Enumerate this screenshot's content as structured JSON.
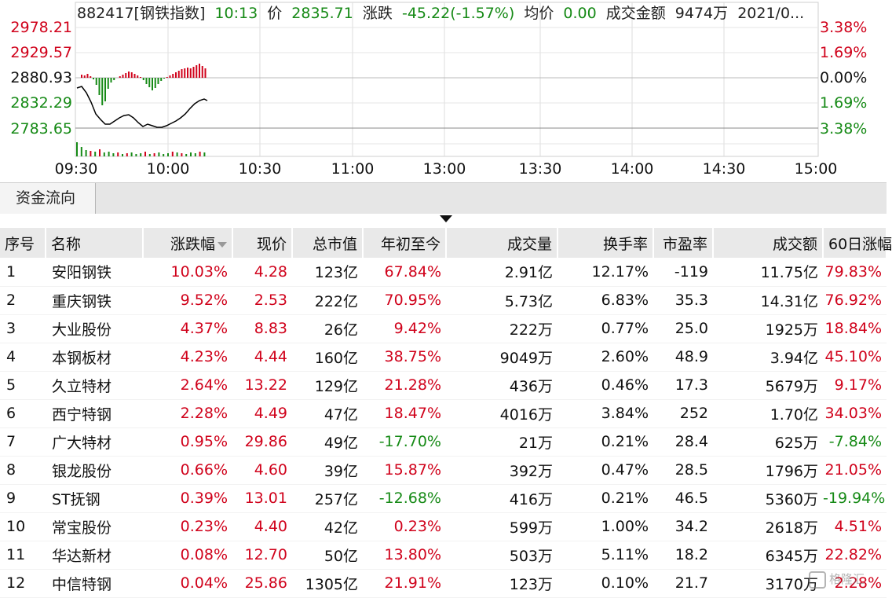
{
  "header": {
    "code_name": "882417[钢铁指数]",
    "time": "10:13",
    "price_label": "价",
    "price": "2835.71",
    "change_label": "涨跌",
    "change": "-45.22(-1.57%)",
    "avg_label": "均价",
    "avg": "0.00",
    "amount_label": "成交金额",
    "amount": "9474万",
    "date": "2021/0..."
  },
  "chart": {
    "left_axis": [
      "2978.21",
      "2929.57",
      "2880.93",
      "2832.29",
      "2783.65"
    ],
    "right_axis": [
      "3.38%",
      "1.69%",
      "0.00%",
      "1.69%",
      "3.38%"
    ],
    "time_axis": [
      "09:30",
      "10:00",
      "10:30",
      "11:00",
      "13:00",
      "13:30",
      "14:00",
      "14:30",
      "15:00"
    ],
    "colors": {
      "up": "#d0021b",
      "down": "#168a16",
      "line": "#000000"
    }
  },
  "tabs": {
    "fund_flow": "资金流向"
  },
  "table": {
    "headers": [
      "序号",
      "名称",
      "涨跌幅",
      "现价",
      "总市值",
      "年初至今",
      "成交量",
      "换手率",
      "市盈率",
      "成交额",
      "60日涨幅"
    ],
    "rows": [
      [
        "1",
        "安阳钢铁",
        "10.03%",
        "4.28",
        "123亿",
        "67.84%",
        "2.91亿",
        "12.17%",
        "-119",
        "11.75亿",
        "79.83%"
      ],
      [
        "2",
        "重庆钢铁",
        "9.52%",
        "2.53",
        "222亿",
        "70.95%",
        "5.73亿",
        "6.83%",
        "35.3",
        "14.31亿",
        "76.92%"
      ],
      [
        "3",
        "大业股份",
        "4.37%",
        "8.83",
        "26亿",
        "9.42%",
        "222万",
        "0.77%",
        "25.0",
        "1925万",
        "18.84%"
      ],
      [
        "4",
        "本钢板材",
        "4.23%",
        "4.44",
        "160亿",
        "38.75%",
        "9049万",
        "2.60%",
        "48.9",
        "3.94亿",
        "45.10%"
      ],
      [
        "5",
        "久立特材",
        "2.64%",
        "13.22",
        "129亿",
        "21.28%",
        "436万",
        "0.46%",
        "17.3",
        "5679万",
        "9.17%"
      ],
      [
        "6",
        "西宁特钢",
        "2.28%",
        "4.49",
        "47亿",
        "18.47%",
        "4016万",
        "3.84%",
        "252",
        "1.70亿",
        "34.03%"
      ],
      [
        "7",
        "广大特材",
        "0.95%",
        "29.86",
        "49亿",
        "-17.70%",
        "21万",
        "0.21%",
        "28.4",
        "625万",
        "-7.84%"
      ],
      [
        "8",
        "银龙股份",
        "0.66%",
        "4.60",
        "39亿",
        "15.87%",
        "392万",
        "0.47%",
        "28.5",
        "1796万",
        "21.05%"
      ],
      [
        "9",
        "ST抚钢",
        "0.39%",
        "13.01",
        "257亿",
        "-12.68%",
        "416万",
        "0.21%",
        "46.5",
        "5360万",
        "-19.94%"
      ],
      [
        "10",
        "常宝股份",
        "0.23%",
        "4.40",
        "42亿",
        "0.23%",
        "599万",
        "1.00%",
        "34.2",
        "2618万",
        "4.51%"
      ],
      [
        "11",
        "华达新材",
        "0.08%",
        "12.70",
        "50亿",
        "13.80%",
        "503万",
        "5.11%",
        "18.2",
        "6345万",
        "22.82%"
      ],
      [
        "12",
        "中信特钢",
        "0.04%",
        "25.86",
        "1305亿",
        "21.91%",
        "123万",
        "0.10%",
        "21.7",
        "3170万",
        "2.28%"
      ]
    ]
  },
  "watermark": "格隆汇"
}
